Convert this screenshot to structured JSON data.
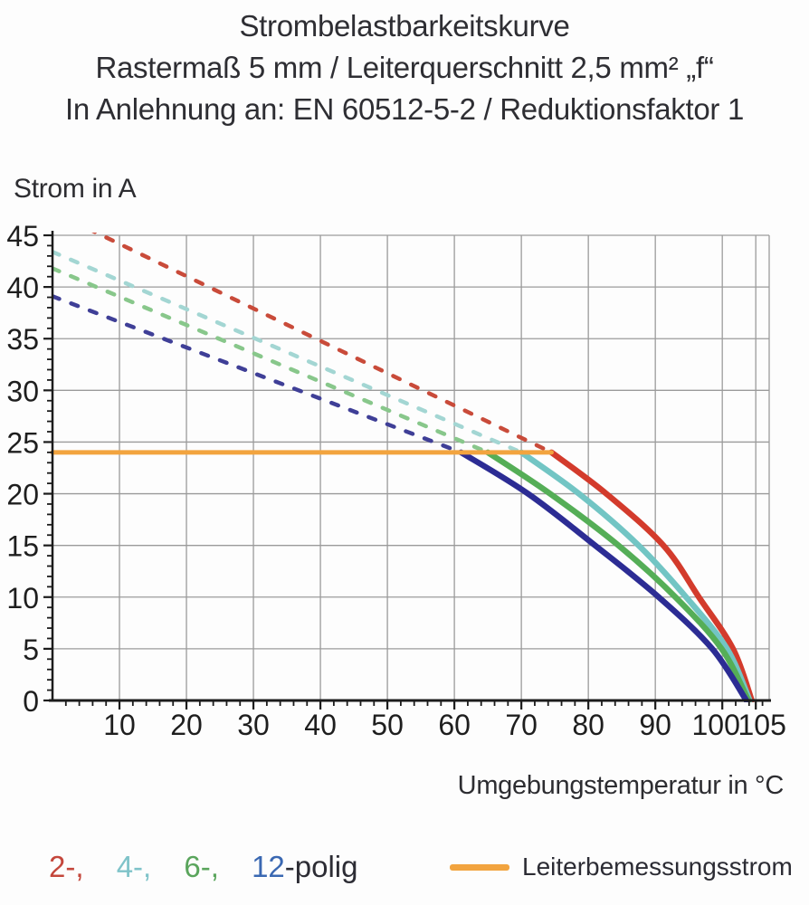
{
  "header": {
    "line1": "Strombelastbarkeitskurve",
    "line2": "Rastermaß 5 mm / Leiterquerschnitt 2,5 mm² „f“",
    "line3": "In Anlehnung an: EN 60512-5-2 / Reduktionsfaktor 1"
  },
  "chart_data": {
    "type": "line",
    "title": "Strombelastbarkeitskurve",
    "ylabel": "Strom in A",
    "xlabel": "Umgebungstemperatur in °C",
    "xlim": [
      0,
      107
    ],
    "ylim": [
      0,
      45
    ],
    "x_tick_values": [
      10,
      20,
      30,
      40,
      50,
      60,
      70,
      80,
      90,
      100,
      105
    ],
    "x_tick_labels": [
      "10",
      "20",
      "30",
      "40",
      "50",
      "60",
      "70",
      "80",
      "90",
      "100",
      "105"
    ],
    "y_tick_values": [
      0,
      5,
      10,
      15,
      20,
      25,
      30,
      35,
      40,
      45
    ],
    "y_tick_labels": [
      "0",
      "5",
      "10",
      "15",
      "20",
      "25",
      "30",
      "35",
      "40",
      "45"
    ],
    "x_minor_step": 2,
    "y_minor_step": 1,
    "grid": true,
    "grid_color": "#9b9b9b",
    "axis_color": "#1c1c1c",
    "tick_label_color": "#1e1e1e",
    "rated_current": {
      "label": "Leiterbemessungsstrom",
      "value_a": 24,
      "x_start_c": 0,
      "x_end_c": 74.5,
      "color": "#f2a43f"
    },
    "series": [
      {
        "name": "2-polig",
        "poles": 2,
        "solid_color": "#d33b2c",
        "dashed_color": "#c94b3a",
        "dashed_line_c_a": [
          [
            0,
            47.3
          ],
          [
            74.5,
            24
          ]
        ],
        "solid_curve_c_a": [
          [
            74.5,
            24
          ],
          [
            82.7,
            20
          ],
          [
            91.2,
            15
          ],
          [
            96.5,
            10
          ],
          [
            101.6,
            5
          ],
          [
            104.4,
            0
          ]
        ]
      },
      {
        "name": "4-polig",
        "poles": 4,
        "solid_color": "#72c5c4",
        "dashed_color": "#a3d6d3",
        "dashed_line_c_a": [
          [
            0,
            43.4
          ],
          [
            70,
            24
          ]
        ],
        "solid_curve_c_a": [
          [
            70,
            24
          ],
          [
            78.6,
            20
          ],
          [
            87.5,
            15
          ],
          [
            94.6,
            10
          ],
          [
            100.7,
            5
          ],
          [
            104.1,
            0
          ]
        ]
      },
      {
        "name": "6-polig",
        "poles": 6,
        "solid_color": "#55ae57",
        "dashed_color": "#88c78b",
        "dashed_line_c_a": [
          [
            0,
            41.8
          ],
          [
            65,
            24
          ]
        ],
        "solid_curve_c_a": [
          [
            65,
            24
          ],
          [
            74.3,
            20
          ],
          [
            84.5,
            15
          ],
          [
            93,
            10
          ],
          [
            99.9,
            5
          ],
          [
            103.9,
            0
          ]
        ]
      },
      {
        "name": "12-polig",
        "poles": 12,
        "solid_color": "#2c2c94",
        "dashed_color": "#3f3f97",
        "dashed_line_c_a": [
          [
            0,
            39.1
          ],
          [
            61,
            24
          ]
        ],
        "solid_curve_c_a": [
          [
            61,
            24
          ],
          [
            71,
            20
          ],
          [
            81,
            15
          ],
          [
            90.5,
            10
          ],
          [
            98.5,
            5
          ],
          [
            103.6,
            0
          ]
        ]
      }
    ]
  },
  "legend": {
    "pole_items": [
      {
        "label": "2-,",
        "color": "#c4473c"
      },
      {
        "label": "4-,",
        "color": "#7fc3c9"
      },
      {
        "label": "6-,",
        "color": "#5aa55c"
      },
      {
        "label": "12",
        "color": "#3a68b2"
      }
    ],
    "suffix": "-polig",
    "suffix_color": "#2c2c34",
    "rated_label": "Leiterbemessungsstrom"
  }
}
